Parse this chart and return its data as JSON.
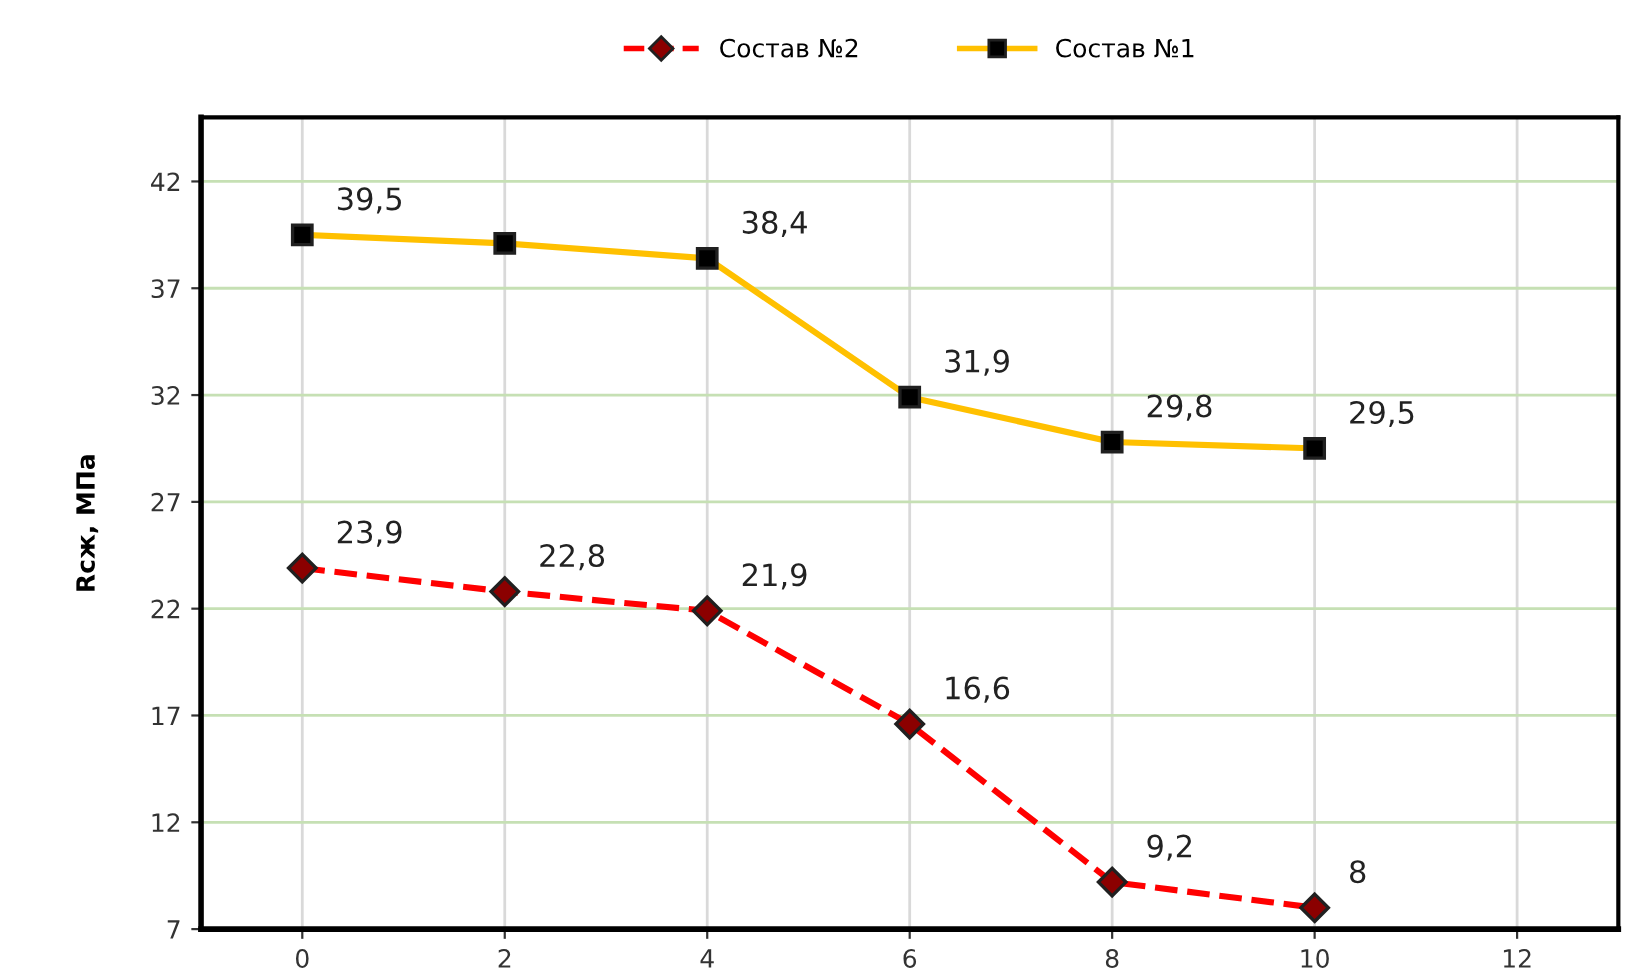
{
  "chart_data": {
    "type": "line",
    "ylabel": "Rсж, МПа",
    "x": [
      0,
      2,
      4,
      6,
      8,
      10
    ],
    "series": [
      {
        "name": "Состав №2",
        "color": "#ff0000",
        "marker": "diamond",
        "line_style": "dashed",
        "values": [
          23.9,
          22.8,
          21.9,
          16.6,
          9.2,
          8
        ],
        "value_labels": [
          "23,9",
          "22,8",
          "21,9",
          "16,6",
          "9,2",
          "8"
        ]
      },
      {
        "name": "Состав №1",
        "color": "#ffc000",
        "marker": "square",
        "line_style": "solid",
        "values": [
          39.5,
          39.1,
          38.4,
          31.9,
          29.8,
          29.5
        ],
        "value_labels": [
          "39,5",
          null,
          "38,4",
          "31,9",
          "29,8",
          "29,5"
        ]
      }
    ],
    "xlim": [
      -1,
      13
    ],
    "xticks": [
      0,
      2,
      4,
      6,
      8,
      10,
      12
    ],
    "ylim": [
      7,
      45
    ],
    "yticks": [
      7,
      12,
      17,
      22,
      27,
      32,
      37,
      42
    ],
    "grid": true,
    "legend": "top"
  }
}
